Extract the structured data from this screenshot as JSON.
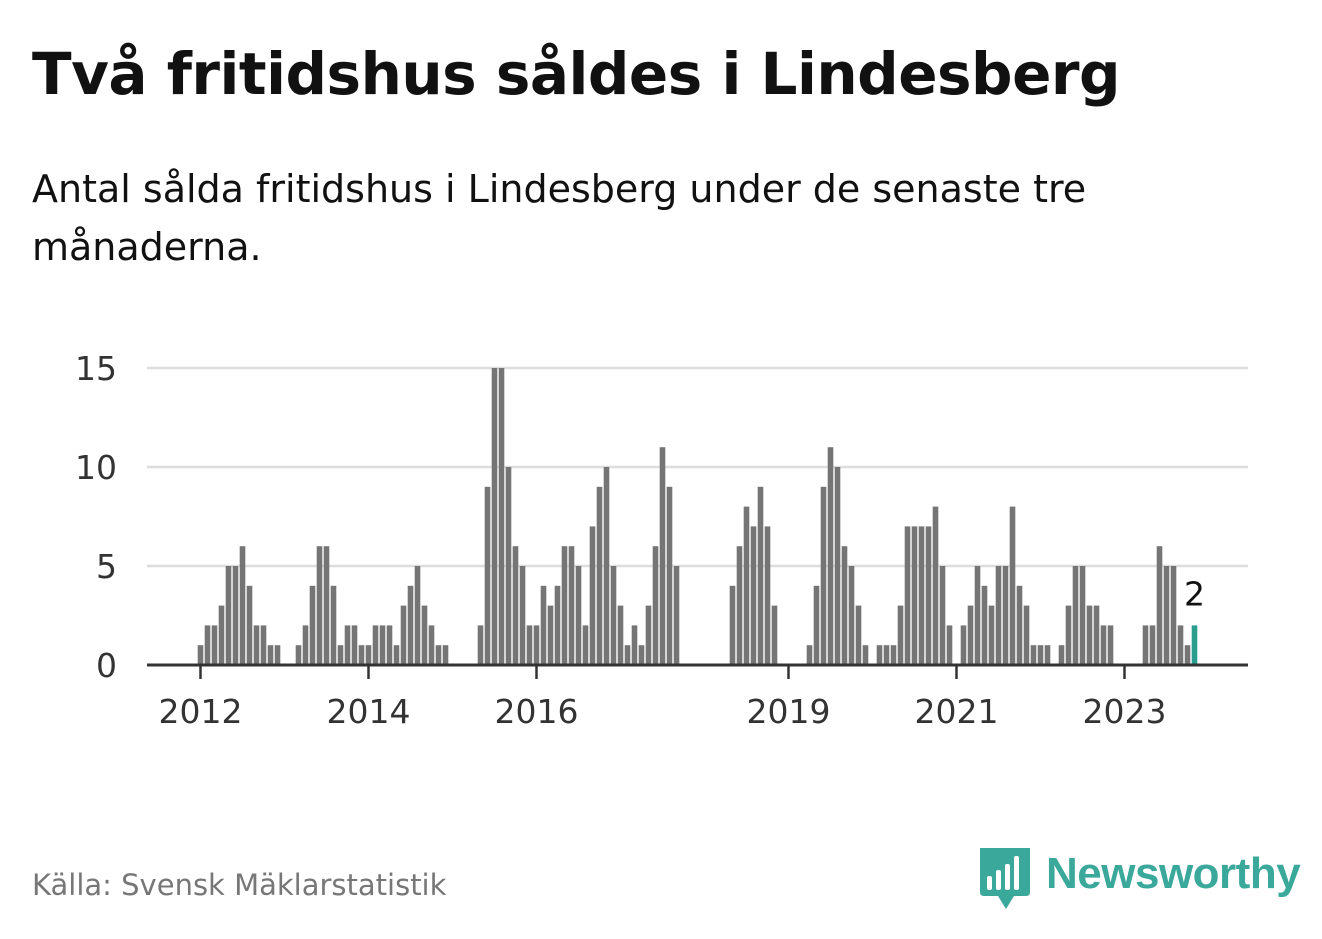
{
  "title": "Två fritidshus såldes i Lindesberg",
  "subtitle": "Antal sålda fritidshus i Lindesberg under de senaste tre månaderna.",
  "source": "Källa: Svensk Mäklarstatistik",
  "brand": "Newsworthy",
  "colors": {
    "bar": "#757575",
    "highlight": "#2a9d8f",
    "grid": "#dddddd",
    "axis": "#333333",
    "brand": "#3aa89a"
  },
  "chart_data": {
    "type": "bar",
    "xlabel": "",
    "ylabel": "",
    "ylim": [
      0,
      15
    ],
    "yticks": [
      0,
      5,
      10,
      15
    ],
    "xticks": [
      {
        "label": "2012",
        "index": 0
      },
      {
        "label": "2014",
        "index": 24
      },
      {
        "label": "2016",
        "index": 48
      },
      {
        "label": "2019",
        "index": 84
      },
      {
        "label": "2021",
        "index": 108
      },
      {
        "label": "2023",
        "index": 132
      }
    ],
    "values": [
      1,
      2,
      2,
      3,
      5,
      5,
      6,
      4,
      2,
      2,
      1,
      1,
      0,
      0,
      1,
      2,
      4,
      6,
      6,
      4,
      1,
      2,
      2,
      1,
      1,
      2,
      2,
      2,
      1,
      3,
      4,
      5,
      3,
      2,
      1,
      1,
      0,
      0,
      0,
      0,
      2,
      9,
      15,
      15,
      10,
      6,
      5,
      2,
      2,
      4,
      3,
      4,
      6,
      6,
      5,
      2,
      7,
      9,
      10,
      5,
      3,
      1,
      2,
      1,
      3,
      6,
      11,
      9,
      5,
      0,
      0,
      0,
      0,
      0,
      0,
      0,
      4,
      6,
      8,
      7,
      9,
      7,
      3,
      0,
      0,
      0,
      0,
      1,
      4,
      9,
      11,
      10,
      6,
      5,
      3,
      1,
      0,
      1,
      1,
      1,
      3,
      7,
      7,
      7,
      7,
      8,
      5,
      2,
      0,
      2,
      3,
      5,
      4,
      3,
      5,
      5,
      8,
      4,
      3,
      1,
      1,
      1,
      0,
      1,
      3,
      5,
      5,
      3,
      3,
      2,
      2,
      0,
      0,
      0,
      0,
      2,
      2,
      6,
      5,
      5,
      2,
      1,
      2
    ],
    "highlight_index": 142,
    "highlight_label": "2"
  }
}
